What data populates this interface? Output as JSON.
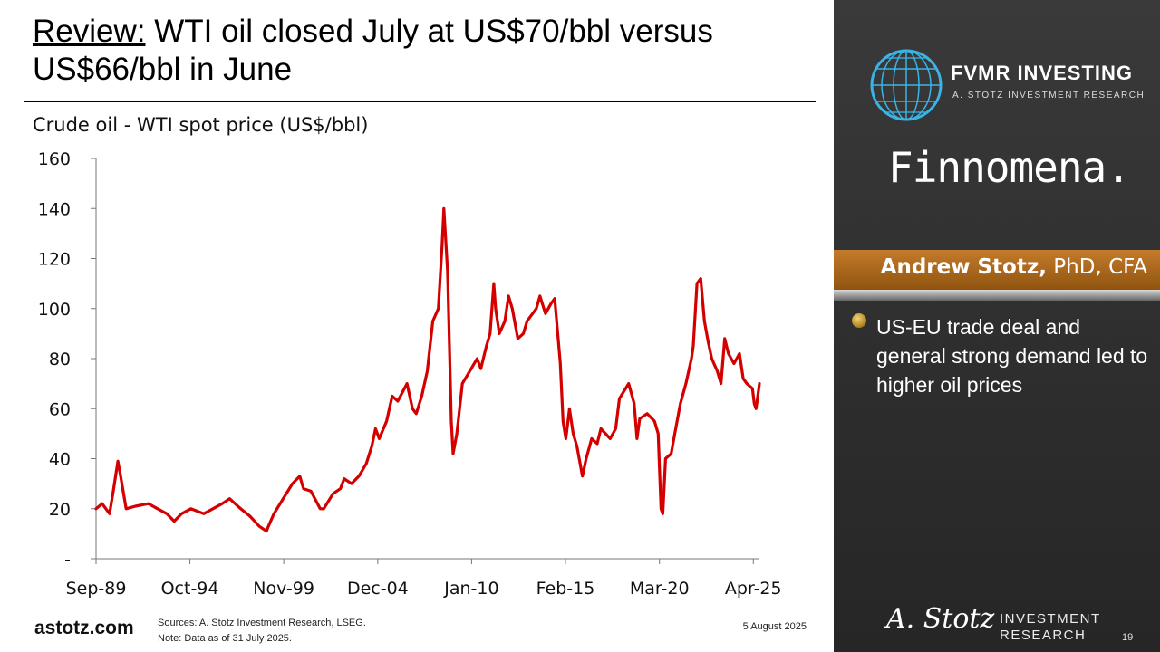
{
  "slide": {
    "title_lead": "Review:",
    "title_rest": " WTI oil closed July at US$70/bbl versus US$66/bbl in June",
    "footer_site": "astotz.com",
    "source_line": "Sources: A. Stotz Investment Research, LSEG.",
    "note_line": "Note: Data as of 31 July 2025.",
    "date": "5 August 2025",
    "page_number": "19"
  },
  "panel": {
    "brand_name": "FVMR INVESTING",
    "brand_sub": "A. STOTZ INVESTMENT RESEARCH",
    "partner": "Finnomena.",
    "presenter_name": "Andrew Stotz,",
    "presenter_creds": " PhD, CFA",
    "bullet": "US-EU trade deal and general strong demand led to higher oil prices",
    "signature": "A. Stotz",
    "ir_line1": "INVESTMENT",
    "ir_line2": "RESEARCH",
    "icons": [
      "globe-icon",
      "bullet-dot-icon"
    ]
  },
  "colors": {
    "series": "#d40000",
    "panel_bg": "#2e2e2e",
    "accent_band": "#b06a1c"
  },
  "chart_data": {
    "type": "line",
    "title": "Crude oil - WTI spot price (US$/bbl)",
    "xlabel": "",
    "ylabel": "",
    "ylim": [
      0,
      160
    ],
    "yticks": [
      0,
      20,
      40,
      60,
      80,
      100,
      120,
      140,
      160
    ],
    "ytick_labels": [
      "-",
      "20",
      "40",
      "60",
      "80",
      "100",
      "120",
      "140",
      "160"
    ],
    "xlim": [
      1989.67,
      2025.58
    ],
    "xticks": [
      1989.67,
      1994.75,
      1999.83,
      2004.92,
      2010.0,
      2015.08,
      2020.17,
      2025.25
    ],
    "xtick_labels": [
      "Sep-89",
      "Oct-94",
      "Nov-99",
      "Dec-04",
      "Jan-10",
      "Feb-15",
      "Mar-20",
      "Apr-25"
    ],
    "grid": false,
    "legend": "none",
    "series": [
      {
        "x": [
          1989.67,
          1990.0,
          1990.4,
          1990.6,
          1990.85,
          1991.0,
          1991.3,
          1991.8,
          1992.5,
          1993.0,
          1993.5,
          1993.9,
          1994.3,
          1994.8,
          1995.5,
          1996.0,
          1996.5,
          1996.9,
          1997.5,
          1998.0,
          1998.5,
          1998.9,
          1999.0,
          1999.3,
          1999.8,
          2000.3,
          2000.7,
          2000.9,
          2001.3,
          2001.8,
          2002.0,
          2002.5,
          2002.9,
          2003.1,
          2003.5,
          2003.9,
          2004.3,
          2004.6,
          2004.8,
          2005.0,
          2005.4,
          2005.7,
          2006.0,
          2006.5,
          2006.8,
          2007.0,
          2007.3,
          2007.6,
          2007.9,
          2008.2,
          2008.4,
          2008.5,
          2008.7,
          2008.9,
          2009.0,
          2009.2,
          2009.5,
          2009.9,
          2010.3,
          2010.5,
          2010.8,
          2011.0,
          2011.2,
          2011.3,
          2011.5,
          2011.8,
          2012.0,
          2012.2,
          2012.5,
          2012.8,
          2013.0,
          2013.5,
          2013.7,
          2014.0,
          2014.3,
          2014.5,
          2014.8,
          2014.95,
          2015.1,
          2015.3,
          2015.5,
          2015.7,
          2016.0,
          2016.2,
          2016.5,
          2016.8,
          2017.0,
          2017.5,
          2017.8,
          2018.0,
          2018.5,
          2018.8,
          2018.95,
          2019.1,
          2019.5,
          2019.9,
          2020.1,
          2020.25,
          2020.35,
          2020.5,
          2020.8,
          2021.0,
          2021.3,
          2021.6,
          2021.9,
          2022.0,
          2022.2,
          2022.4,
          2022.6,
          2022.8,
          2023.0,
          2023.3,
          2023.5,
          2023.7,
          2023.9,
          2024.2,
          2024.5,
          2024.7,
          2024.9,
          2025.2,
          2025.3,
          2025.4,
          2025.58
        ],
        "y": [
          20,
          22,
          18,
          27,
          39,
          33,
          20,
          21,
          22,
          20,
          18,
          15,
          18,
          20,
          18,
          20,
          22,
          24,
          20,
          17,
          13,
          11,
          13,
          18,
          24,
          30,
          33,
          28,
          27,
          20,
          20,
          26,
          28,
          32,
          30,
          33,
          38,
          45,
          52,
          48,
          55,
          65,
          63,
          70,
          60,
          58,
          65,
          75,
          95,
          100,
          125,
          140,
          115,
          55,
          42,
          50,
          70,
          75,
          80,
          76,
          85,
          90,
          110,
          100,
          90,
          95,
          105,
          100,
          88,
          90,
          95,
          100,
          105,
          98,
          102,
          104,
          78,
          55,
          48,
          60,
          50,
          45,
          33,
          40,
          48,
          46,
          52,
          48,
          52,
          64,
          70,
          62,
          48,
          56,
          58,
          55,
          50,
          20,
          18,
          40,
          42,
          50,
          62,
          70,
          80,
          85,
          110,
          112,
          95,
          87,
          80,
          75,
          70,
          88,
          82,
          78,
          82,
          72,
          70,
          68,
          62,
          60,
          70
        ]
      }
    ]
  }
}
